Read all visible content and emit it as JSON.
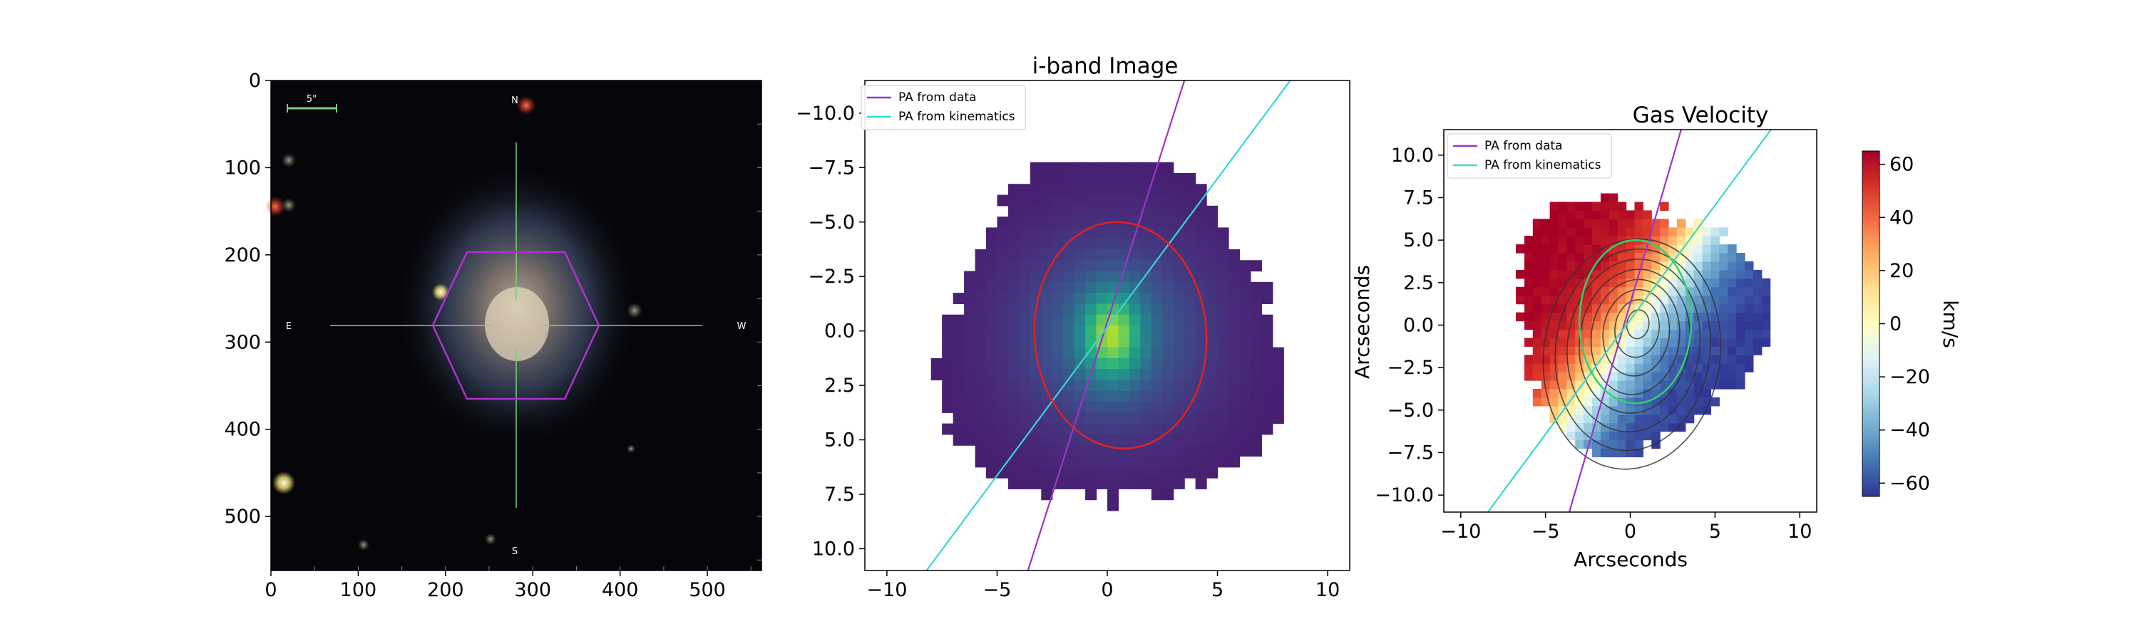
{
  "chart_data": [
    {
      "type": "image",
      "panel": "sdss-color-image",
      "title": "",
      "xticks": [
        "0",
        "100",
        "200",
        "300",
        "400",
        "500"
      ],
      "yticks": [
        "0",
        "100",
        "200",
        "300",
        "400",
        "500"
      ],
      "xlim": [
        0,
        562
      ],
      "ylim": [
        562,
        0
      ],
      "scale_bar_label": "5\"",
      "compass": {
        "north": "N",
        "south": "S",
        "east": "E",
        "west": "W"
      },
      "center": [
        282,
        280
      ],
      "hexagon_color": "#b030d0",
      "crosshair_color": "#7ad07a"
    },
    {
      "type": "heatmap",
      "panel": "i-band-image",
      "title": "i-band Image",
      "xlim": [
        -11,
        11
      ],
      "ylim": [
        11,
        -11.5
      ],
      "xticks": [
        "−10",
        "−5",
        "0",
        "5",
        "10"
      ],
      "yticks": [
        "−10.0",
        "−7.5",
        "−5.0",
        "−2.5",
        "0.0",
        "2.5",
        "5.0",
        "7.5",
        "10.0"
      ],
      "legend": {
        "placement": "top-left",
        "entries": [
          {
            "label": "PA from data",
            "color": "#9a35c8"
          },
          {
            "label": "PA from kinematics",
            "color": "#3ad6d0"
          }
        ]
      },
      "pa_data_line": {
        "points": [
          [
            -3.6,
            11
          ],
          [
            3.5,
            -11.5
          ]
        ],
        "color": "#9a35c8"
      },
      "pa_kin_line": {
        "points": [
          [
            -8.2,
            11
          ],
          [
            8.3,
            -11.5
          ]
        ],
        "color": "#3ad6d0"
      },
      "ellipse": {
        "center": [
          0.6,
          0.2
        ],
        "rx": 3.9,
        "ry": 5.2,
        "color": "#e02020"
      },
      "colormap": "viridis"
    },
    {
      "type": "heatmap",
      "panel": "gas-velocity",
      "title": "Gas Velocity",
      "xlabel": "Arcseconds",
      "ylabel": "Arcseconds",
      "xlim": [
        -11,
        11
      ],
      "ylim": [
        -11,
        11.5
      ],
      "xticks": [
        "−10",
        "−5",
        "0",
        "5",
        "10"
      ],
      "yticks": [
        "10.0",
        "7.5",
        "5.0",
        "2.5",
        "0.0",
        "−2.5",
        "−5.0",
        "−7.5",
        "−10.0"
      ],
      "legend": {
        "placement": "top-left",
        "entries": [
          {
            "label": "PA from data",
            "color": "#9a35c8"
          },
          {
            "label": "PA from kinematics",
            "color": "#3ad6d0"
          }
        ]
      },
      "pa_data_line": {
        "points": [
          [
            -3.6,
            -11
          ],
          [
            3.0,
            11.5
          ]
        ],
        "color": "#9a35c8"
      },
      "pa_kin_line": {
        "points": [
          [
            -8.4,
            -11
          ],
          [
            8.3,
            11.5
          ]
        ],
        "color": "#3ad6d0"
      },
      "ellipse": {
        "center": [
          0.3,
          0.2
        ],
        "rx": 3.3,
        "ry": 4.8,
        "color": "#30d070"
      },
      "colorbar": {
        "label": "km/s",
        "range": [
          -65,
          65
        ],
        "ticks": [
          "60",
          "40",
          "20",
          "0",
          "−20",
          "−40",
          "−60"
        ],
        "colormap": "RdYlBu"
      }
    }
  ]
}
